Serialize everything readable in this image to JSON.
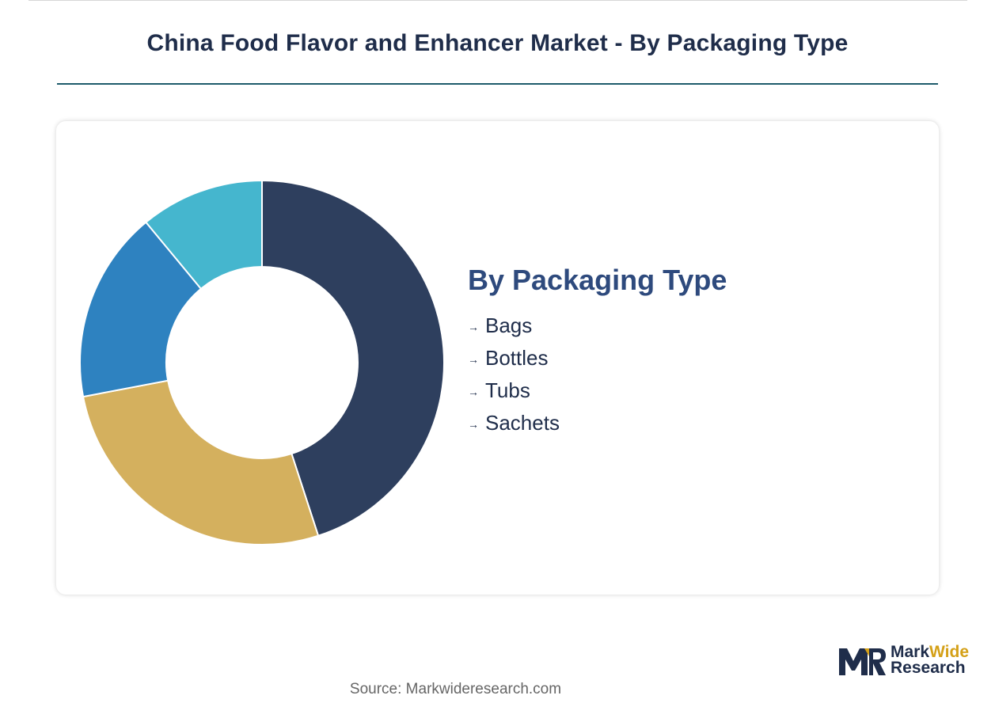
{
  "title": "China Food Flavor and Enhancer Market - By Packaging Type",
  "source": "Source: Markwideresearch.com",
  "logo": {
    "line1_a": "Mark",
    "line1_b": "Wide",
    "line2": "Research"
  },
  "colors": {
    "title": "#1f2d4a",
    "rule": "#1e5b6b",
    "legend_title": "#2e4a7d",
    "logo_accent": "#d4a017"
  },
  "chart_data": {
    "type": "pie",
    "legend_title": "By Packaging Type",
    "legend_placement": "right",
    "categories": [
      "Bags",
      "Bottles",
      "Tubs",
      "Sachets"
    ],
    "values": [
      45,
      27,
      17,
      11
    ],
    "colors": [
      "#2e3f5e",
      "#d4b05e",
      "#2e82c0",
      "#45b6ce"
    ]
  }
}
